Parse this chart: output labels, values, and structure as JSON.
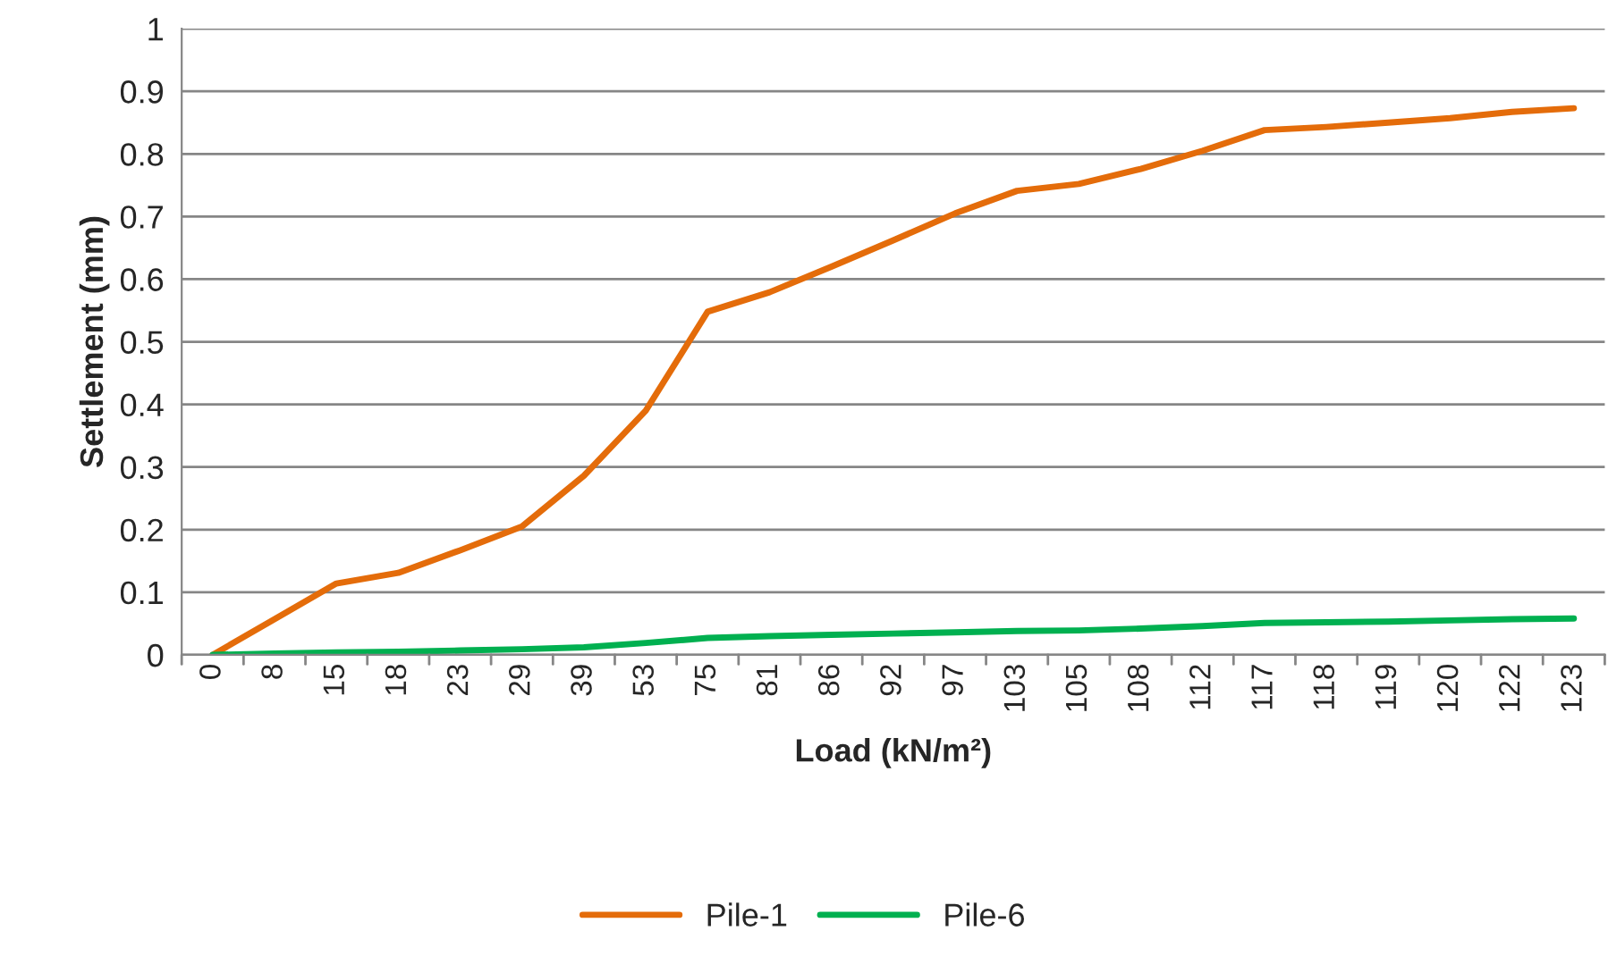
{
  "chart_data": {
    "type": "line",
    "xlabel": "Load (kN/m²)",
    "ylabel": "Settlement (mm)",
    "categories": [
      "0",
      "8",
      "15",
      "18",
      "23",
      "29",
      "39",
      "53",
      "75",
      "81",
      "86",
      "92",
      "97",
      "103",
      "105",
      "108",
      "112",
      "117",
      "118",
      "119",
      "120",
      "122",
      "123"
    ],
    "series": [
      {
        "name": "Pile-1",
        "color": "#e46c0a",
        "values": [
          0,
          0.057,
          0.114,
          0.131,
          0.167,
          0.205,
          0.286,
          0.39,
          0.548,
          0.579,
          0.62,
          0.662,
          0.705,
          0.741,
          0.752,
          0.776,
          0.805,
          0.838,
          0.843,
          0.85,
          0.857,
          0.867,
          0.873
        ]
      },
      {
        "name": "Pile-6",
        "color": "#00b050",
        "values": [
          0,
          0.002,
          0.004,
          0.005,
          0.007,
          0.009,
          0.012,
          0.019,
          0.027,
          0.03,
          0.032,
          0.034,
          0.036,
          0.038,
          0.039,
          0.042,
          0.046,
          0.051,
          0.052,
          0.053,
          0.055,
          0.057,
          0.058
        ]
      }
    ],
    "ylim": [
      0,
      1
    ],
    "yticks": [
      0,
      0.1,
      0.2,
      0.3,
      0.4,
      0.5,
      0.6,
      0.7,
      0.8,
      0.9,
      1
    ],
    "grid": "y",
    "legend": "bottom",
    "marker": "none",
    "line_style": "solid"
  }
}
